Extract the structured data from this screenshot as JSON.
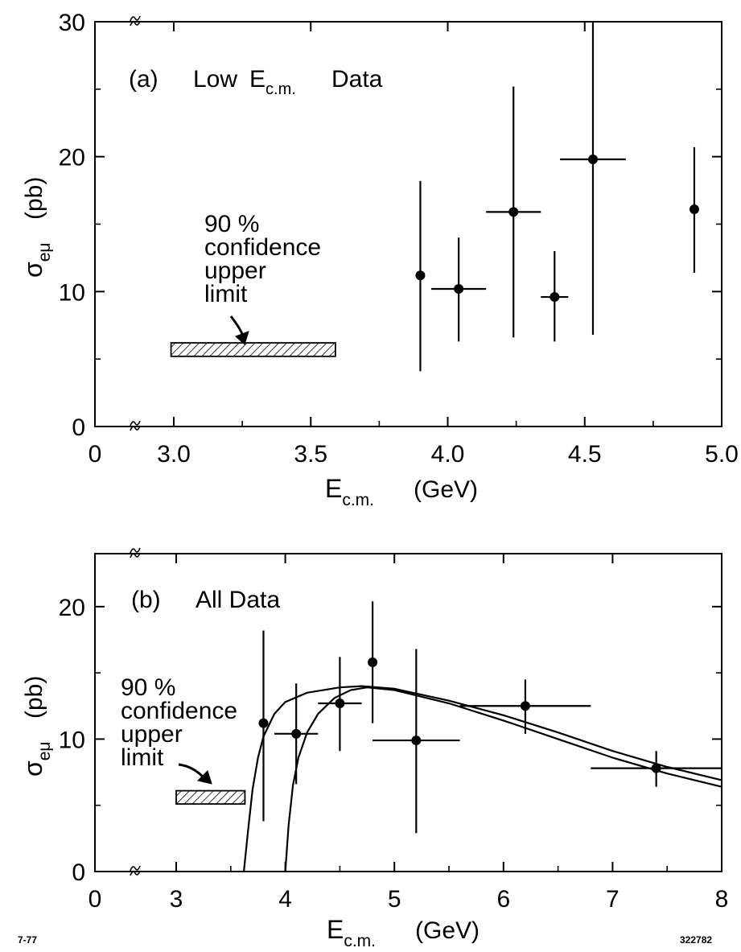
{
  "chart_data": [
    {
      "id": "a",
      "type": "scatter",
      "panel_label": "(a)",
      "title_prefix": "Low",
      "title_symbol": "E",
      "title_subscript": "c.m.",
      "title_suffix": "Data",
      "xlabel_symbol": "E",
      "xlabel_subscript": "c.m.",
      "xlabel_unit": "(GeV)",
      "ylabel_symbol": "σ",
      "ylabel_subscript": "eμ",
      "ylabel_unit": "(pb)",
      "xlim": [
        3.0,
        5.0
      ],
      "ylim": [
        0,
        30
      ],
      "x_ticks": [
        3.0,
        3.5,
        4.0,
        4.5,
        5.0
      ],
      "x_tick_labels": [
        "3.0",
        "3.5",
        "4.0",
        "4.5",
        "5.0"
      ],
      "x_origin_label": "0",
      "y_ticks": [
        0,
        10,
        20,
        30
      ],
      "y_tick_labels": [
        "0",
        "10",
        "20",
        "30"
      ],
      "axis_break": true,
      "grid": false,
      "points": [
        {
          "x": 3.9,
          "y": 11.2,
          "yerr_low": 4.1,
          "yerr_high": 18.2,
          "xerr": 0
        },
        {
          "x": 4.04,
          "y": 10.2,
          "yerr_low": 6.3,
          "yerr_high": 14.0,
          "xerr": 0.1
        },
        {
          "x": 4.24,
          "y": 15.9,
          "yerr_low": 6.6,
          "yerr_high": 25.2,
          "xerr": 0.1
        },
        {
          "x": 4.39,
          "y": 9.6,
          "yerr_low": 6.3,
          "yerr_high": 13.0,
          "xerr": 0.05
        },
        {
          "x": 4.53,
          "y": 19.8,
          "yerr_low": 6.8,
          "yerr_high": 30.0,
          "xerr": 0.12
        },
        {
          "x": 4.9,
          "y": 16.1,
          "yerr_low": 11.4,
          "yerr_high": 20.7,
          "xerr": 0
        }
      ],
      "limit_box": {
        "x0": 2.99,
        "x1": 3.59,
        "y0": 5.2,
        "y1": 6.2
      },
      "limit_text": [
        "90 %",
        "confidence",
        "upper",
        "limit"
      ]
    },
    {
      "id": "b",
      "type": "scatter",
      "panel_label": "(b)",
      "title": "All Data",
      "xlabel_symbol": "E",
      "xlabel_subscript": "c.m.",
      "xlabel_unit": "(GeV)",
      "ylabel_symbol": "σ",
      "ylabel_subscript": "eμ",
      "ylabel_unit": "(pb)",
      "xlim": [
        3,
        8
      ],
      "ylim": [
        0,
        24
      ],
      "x_ticks": [
        3,
        4,
        5,
        6,
        7,
        8
      ],
      "x_tick_labels": [
        "3",
        "4",
        "5",
        "6",
        "7",
        "8"
      ],
      "x_origin_label": "0",
      "y_ticks": [
        0,
        10,
        20
      ],
      "y_tick_labels": [
        "0",
        "10",
        "20"
      ],
      "axis_break": true,
      "grid": false,
      "points": [
        {
          "x": 3.8,
          "y": 11.2,
          "yerr_low": 3.8,
          "yerr_high": 18.2,
          "xerr": 0
        },
        {
          "x": 4.1,
          "y": 10.4,
          "yerr_low": 6.6,
          "yerr_high": 14.2,
          "xerr": 0.2
        },
        {
          "x": 4.5,
          "y": 12.7,
          "yerr_low": 9.1,
          "yerr_high": 16.2,
          "xerr": 0.2
        },
        {
          "x": 4.8,
          "y": 15.8,
          "yerr_low": 11.2,
          "yerr_high": 20.4,
          "xerr": 0
        },
        {
          "x": 5.2,
          "y": 9.9,
          "yerr_low": 2.9,
          "yerr_high": 16.8,
          "xerr": 0.4
        },
        {
          "x": 6.2,
          "y": 12.5,
          "yerr_low": 10.4,
          "yerr_high": 14.5,
          "xerr": 0.6
        },
        {
          "x": 7.4,
          "y": 7.8,
          "yerr_low": 6.4,
          "yerr_high": 9.1,
          "xerr": 0.6
        }
      ],
      "curves": [
        {
          "threshold": 3.62,
          "points": [
            [
              3.62,
              0
            ],
            [
              3.66,
              3.2
            ],
            [
              3.7,
              6.2
            ],
            [
              3.75,
              8.6
            ],
            [
              3.8,
              10.2
            ],
            [
              3.9,
              11.9
            ],
            [
              4.0,
              12.8
            ],
            [
              4.2,
              13.5
            ],
            [
              4.5,
              13.9
            ],
            [
              4.7,
              14.0
            ],
            [
              5.0,
              13.8
            ],
            [
              5.5,
              12.9
            ],
            [
              6.0,
              11.8
            ],
            [
              6.5,
              10.5
            ],
            [
              7.0,
              9.1
            ],
            [
              7.5,
              7.9
            ],
            [
              8.0,
              6.9
            ]
          ]
        },
        {
          "threshold": 4.0,
          "points": [
            [
              4.0,
              0
            ],
            [
              4.03,
              3.5
            ],
            [
              4.07,
              6.5
            ],
            [
              4.12,
              8.6
            ],
            [
              4.2,
              10.5
            ],
            [
              4.3,
              11.9
            ],
            [
              4.45,
              13.1
            ],
            [
              4.6,
              13.7
            ],
            [
              4.75,
              13.9
            ],
            [
              5.0,
              13.7
            ],
            [
              5.5,
              12.7
            ],
            [
              6.0,
              11.4
            ],
            [
              6.5,
              10.0
            ],
            [
              7.0,
              8.6
            ],
            [
              7.5,
              7.4
            ],
            [
              8.0,
              6.4
            ]
          ]
        }
      ],
      "limit_box": {
        "x0": 3.0,
        "x1": 3.63,
        "y0": 5.1,
        "y1": 6.1
      },
      "limit_text": [
        "90 %",
        "confidence",
        "upper",
        "limit"
      ]
    }
  ],
  "footer": {
    "left_note": "7-77",
    "right_note": "322782"
  }
}
